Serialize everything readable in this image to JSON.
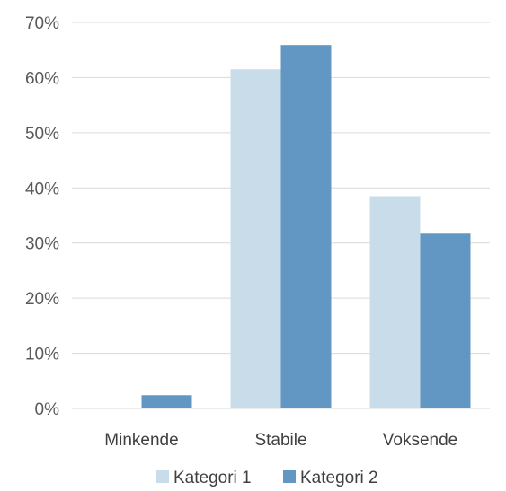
{
  "chart_data": {
    "type": "bar",
    "categories": [
      "Minkende",
      "Stabile",
      "Voksende"
    ],
    "series": [
      {
        "name": "Kategori 1",
        "values": [
          0,
          61.5,
          38.5
        ],
        "color": "#c9dcea"
      },
      {
        "name": "Kategori 2",
        "values": [
          2.4,
          65.9,
          31.7
        ],
        "color": "#6397c3"
      }
    ],
    "y_ticks": [
      "0%",
      "10%",
      "20%",
      "30%",
      "40%",
      "50%",
      "60%",
      "70%"
    ],
    "ylim": [
      0,
      70
    ],
    "grid": true,
    "grid_color": "#d9d9d9",
    "legend_position": "bottom"
  }
}
